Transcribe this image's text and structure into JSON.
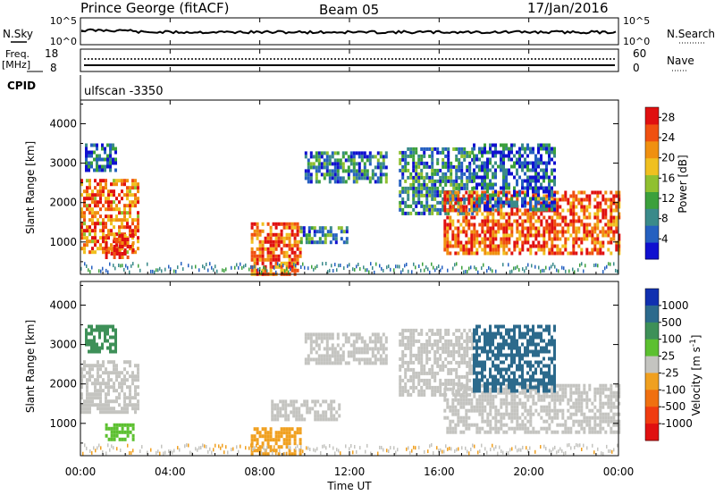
{
  "header": {
    "station": "Prince George (fitACF)",
    "beam": "Beam 05",
    "date": "17/Jan/2016"
  },
  "top_panels": {
    "nsky_label": "N.Sky",
    "nsearch_label": "N.Search",
    "noise_ticks_left": [
      "10^5",
      "10^0"
    ],
    "noise_ticks_right": [
      "10^5",
      "10^0"
    ],
    "freq_label": "Freq.",
    "freq_unit": "[MHz]",
    "freq_ticks": [
      "18",
      "8"
    ],
    "nave_label": "Nave",
    "nave_ticks": [
      "60",
      "0"
    ],
    "cpid_label": "CPID",
    "cpid_value": "ulfscan -3350"
  },
  "chart_data": [
    {
      "type": "heatmap",
      "name": "power",
      "ylabel": "Slant Range [km]",
      "yticks": [
        "1000",
        "2000",
        "3000",
        "4000"
      ],
      "ylim": [
        180,
        4600
      ],
      "xlim": [
        0,
        24
      ],
      "colorbar_label": "Power [dB]",
      "colorbar_ticks": [
        "4",
        "8",
        "12",
        "16",
        "20",
        "24",
        "28"
      ],
      "colorbar_range": [
        0,
        30
      ],
      "colorbar_colors": [
        "#1010d0",
        "#2560c0",
        "#3a8a8a",
        "#3ca03c",
        "#90c030",
        "#f0c020",
        "#f09010",
        "#f05010",
        "#e01010"
      ],
      "regions": [
        {
          "t": [
            0.0,
            2.6
          ],
          "r": [
            700,
            2600
          ],
          "level": 24
        },
        {
          "t": [
            0.2,
            1.6
          ],
          "r": [
            2800,
            3500
          ],
          "level": 8
        },
        {
          "t": [
            1.1,
            2.4
          ],
          "r": [
            600,
            1200
          ],
          "level": 28
        },
        {
          "t": [
            7.6,
            9.8
          ],
          "r": [
            200,
            1500
          ],
          "level": 26
        },
        {
          "t": [
            9.8,
            11.9
          ],
          "r": [
            1000,
            1400
          ],
          "level": 10
        },
        {
          "t": [
            10.0,
            13.6
          ],
          "r": [
            2500,
            3300
          ],
          "level": 9
        },
        {
          "t": [
            14.2,
            17.5
          ],
          "r": [
            1700,
            3400
          ],
          "level": 10
        },
        {
          "t": [
            16.2,
            24.0
          ],
          "r": [
            700,
            2300
          ],
          "level": 26
        },
        {
          "t": [
            17.5,
            21.2
          ],
          "r": [
            1800,
            3500
          ],
          "level": 7
        }
      ]
    },
    {
      "type": "heatmap",
      "name": "velocity",
      "ylabel": "Slant Range [km]",
      "yticks": [
        "1000",
        "2000",
        "3000",
        "4000"
      ],
      "ylim": [
        180,
        4600
      ],
      "xlim": [
        0,
        24
      ],
      "colorbar_label": "Velocity [m s^-1]",
      "colorbar_ticks": [
        "1000",
        "500",
        "100",
        "25",
        "-25",
        "-100",
        "-500",
        "-1000"
      ],
      "colorbar_colors": [
        "#1030b0",
        "#2c6a8c",
        "#3e9058",
        "#5cc030",
        "#c4c4c0",
        "#f0a020",
        "#f07010",
        "#f03c10",
        "#e01010"
      ],
      "regions": [
        {
          "t": [
            0.0,
            2.6
          ],
          "r": [
            1300,
            2600
          ],
          "v": 0
        },
        {
          "t": [
            0.2,
            1.6
          ],
          "r": [
            2800,
            3500
          ],
          "v": 300
        },
        {
          "t": [
            1.1,
            2.4
          ],
          "r": [
            600,
            1000
          ],
          "v": 60
        },
        {
          "t": [
            7.6,
            9.8
          ],
          "r": [
            200,
            900
          ],
          "v": -80
        },
        {
          "t": [
            8.5,
            11.5
          ],
          "r": [
            1100,
            1600
          ],
          "v": 0
        },
        {
          "t": [
            10.0,
            13.6
          ],
          "r": [
            2500,
            3300
          ],
          "v": 0
        },
        {
          "t": [
            14.2,
            17.5
          ],
          "r": [
            1700,
            3400
          ],
          "v": 0
        },
        {
          "t": [
            16.2,
            24.0
          ],
          "r": [
            800,
            2000
          ],
          "v": 0
        },
        {
          "t": [
            17.5,
            21.2
          ],
          "r": [
            1800,
            3500
          ],
          "v": 800
        }
      ]
    }
  ],
  "x_axis": {
    "ticks": [
      "00:00",
      "04:00",
      "08:00",
      "12:00",
      "16:00",
      "20:00",
      "00:00"
    ],
    "label": "Time UT"
  }
}
